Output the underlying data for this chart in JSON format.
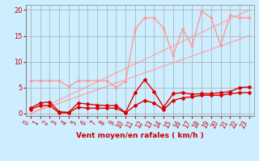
{
  "bg_color": "#cceeff",
  "grid_color": "#aaaaaa",
  "xlabel": "Vent moyen/en rafales ( km/h )",
  "xlim": [
    -0.5,
    23.5
  ],
  "ylim": [
    -0.5,
    21
  ],
  "yticks": [
    0,
    5,
    10,
    15,
    20
  ],
  "xticks": [
    0,
    1,
    2,
    3,
    4,
    5,
    6,
    7,
    8,
    9,
    10,
    11,
    12,
    13,
    14,
    15,
    16,
    17,
    18,
    19,
    20,
    21,
    22,
    23
  ],
  "line_upper_diag1": {
    "x": [
      0,
      23
    ],
    "y": [
      0,
      20.0
    ],
    "color": "#ffaaaa",
    "lw": 1.0
  },
  "line_upper_diag2": {
    "x": [
      0,
      23
    ],
    "y": [
      0,
      15.0
    ],
    "color": "#ffaaaa",
    "lw": 1.0
  },
  "line_pink_zigzag": {
    "x": [
      0,
      1,
      2,
      3,
      4,
      5,
      6,
      7,
      8,
      9,
      10,
      11,
      12,
      13,
      14,
      15,
      16,
      17,
      18,
      19,
      20,
      21,
      22,
      23
    ],
    "y": [
      6.3,
      6.3,
      6.3,
      6.3,
      5.2,
      6.3,
      6.3,
      6.3,
      6.3,
      5.0,
      6.2,
      16.3,
      18.5,
      18.5,
      16.5,
      11.2,
      16.3,
      13.0,
      19.8,
      18.5,
      13.2,
      19.0,
      18.5,
      18.5
    ],
    "color": "#ff9999",
    "lw": 1.0,
    "marker": "s",
    "ms": 2.0
  },
  "line_red_upper": {
    "x": [
      0,
      1,
      2,
      3,
      4,
      5,
      6,
      7,
      8,
      9,
      10,
      11,
      12,
      13,
      14,
      15,
      16,
      17,
      18,
      19,
      20,
      21,
      22,
      23
    ],
    "y": [
      1.0,
      2.0,
      2.2,
      0.3,
      0.2,
      2.0,
      1.8,
      1.6,
      1.5,
      1.5,
      0.2,
      4.0,
      6.5,
      4.2,
      1.2,
      3.8,
      4.0,
      3.7,
      3.8,
      3.8,
      4.0,
      4.2,
      5.0,
      5.1
    ],
    "color": "#dd0000",
    "lw": 1.0,
    "marker": "D",
    "ms": 2.0
  },
  "line_red_lower": {
    "x": [
      0,
      1,
      2,
      3,
      4,
      5,
      6,
      7,
      8,
      9,
      10,
      11,
      12,
      13,
      14,
      15,
      16,
      17,
      18,
      19,
      20,
      21,
      22,
      23
    ],
    "y": [
      0.8,
      1.5,
      1.5,
      0.1,
      0.1,
      1.2,
      1.0,
      1.0,
      1.0,
      1.0,
      0.1,
      1.5,
      2.5,
      2.0,
      0.7,
      2.5,
      3.0,
      3.2,
      3.5,
      3.5,
      3.5,
      3.8,
      4.0,
      4.0
    ],
    "color": "#dd0000",
    "lw": 1.0,
    "marker": "D",
    "ms": 2.0
  }
}
